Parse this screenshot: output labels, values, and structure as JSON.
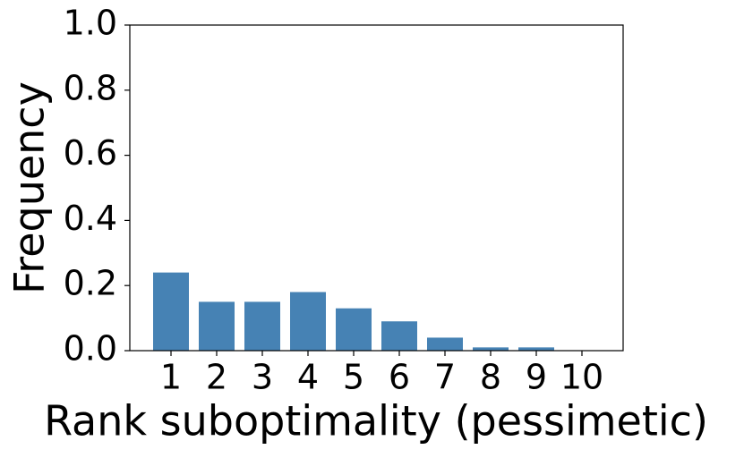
{
  "chart_data": {
    "type": "bar",
    "x_label": "Rank suboptimality (pessimetic)",
    "y_label": "Frequency",
    "categories": [
      "1",
      "2",
      "3",
      "4",
      "5",
      "6",
      "7",
      "8",
      "9",
      "10"
    ],
    "values": [
      0.24,
      0.15,
      0.15,
      0.18,
      0.13,
      0.09,
      0.04,
      0.01,
      0.01,
      0.0
    ],
    "color": "#4682b4",
    "ylim": [
      0,
      1
    ],
    "yticks": [
      {
        "value": 0,
        "label": "0.0"
      },
      {
        "value": 0.2,
        "label": "0.2"
      },
      {
        "value": 0.4,
        "label": "0.4"
      },
      {
        "value": 0.6,
        "label": "0.6"
      },
      {
        "value": 0.8,
        "label": "0.8"
      },
      {
        "value": 1,
        "label": "1.0"
      }
    ],
    "grid": false
  }
}
